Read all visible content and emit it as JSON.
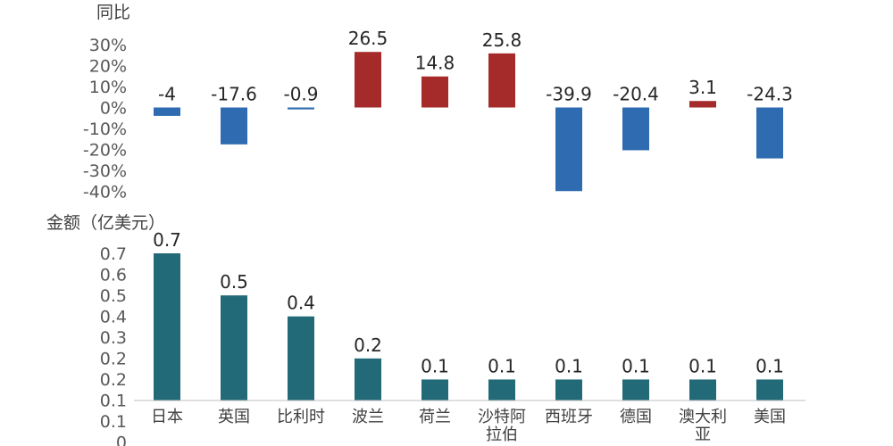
{
  "chart_data": [
    {
      "type": "bar",
      "ylabel": "同比",
      "categories": [
        "日本",
        "英国",
        "比利时",
        "波兰",
        "荷兰",
        "沙特阿拉伯",
        "西班牙",
        "德国",
        "澳大利亚",
        "美国"
      ],
      "values": [
        -4,
        -17.6,
        -0.9,
        26.5,
        14.8,
        25.8,
        -39.9,
        -20.4,
        3.1,
        -24.3
      ],
      "value_labels": [
        "-4",
        "-17.6",
        "-0.9",
        "26.5",
        "14.8",
        "25.8",
        "-39.9",
        "-20.4",
        "3.1",
        "-24.3"
      ],
      "yticks": [
        "30%",
        "20%",
        "10%",
        "0%",
        "-10%",
        "-20%",
        "-30%",
        "-40%"
      ],
      "ylim": [
        -40,
        30
      ],
      "colors": {
        "positive": "#a52a2a",
        "negative": "#2e6bb0"
      }
    },
    {
      "type": "bar",
      "ylabel": "金额（亿美元）",
      "categories": [
        "日本",
        "英国",
        "比利时",
        "波兰",
        "荷兰",
        "沙特阿拉伯",
        "西班牙",
        "德国",
        "澳大利亚",
        "美国"
      ],
      "values": [
        0.7,
        0.5,
        0.4,
        0.2,
        0.1,
        0.1,
        0.1,
        0.1,
        0.1,
        0.1
      ],
      "value_labels": [
        "0.7",
        "0.5",
        "0.4",
        "0.2",
        "0.1",
        "0.1",
        "0.1",
        "0.1",
        "0.1",
        "0.1"
      ],
      "yticks": [
        "0.7",
        "0.6",
        "0.5",
        "0.4",
        "0.3",
        "0.2",
        "0.2",
        "0.1",
        "0.1",
        "0"
      ],
      "ylim": [
        0,
        0.7
      ],
      "colors": {
        "bar": "#236a78"
      }
    }
  ]
}
